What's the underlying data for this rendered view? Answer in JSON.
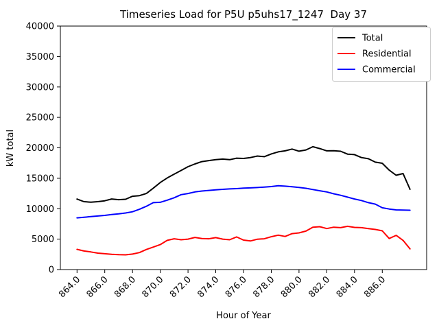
{
  "title": "Timeseries Load for P5U p5uhs17_1247  Day 37",
  "chart_data": {
    "type": "line",
    "title": "Timeseries Load for P5U p5uhs17_1247  Day 37",
    "xlabel": "Hour of Year",
    "ylabel": "kW total",
    "xlim": [
      862.8,
      889.2
    ],
    "ylim": [
      0,
      40000
    ],
    "grid": false,
    "legend_position": "upper right",
    "xticks": [
      864,
      866,
      868,
      870,
      872,
      874,
      876,
      878,
      880,
      882,
      884,
      886
    ],
    "xtick_labels": [
      "864.0",
      "866.0",
      "868.0",
      "870.0",
      "872.0",
      "874.0",
      "876.0",
      "878.0",
      "880.0",
      "882.0",
      "884.0",
      "886.0"
    ],
    "yticks": [
      0,
      5000,
      10000,
      15000,
      20000,
      25000,
      30000,
      35000,
      40000
    ],
    "ytick_labels": [
      "0",
      "5000",
      "10000",
      "15000",
      "20000",
      "25000",
      "30000",
      "35000",
      "40000"
    ],
    "x": [
      864.0,
      864.5,
      865.0,
      865.5,
      866.0,
      866.5,
      867.0,
      867.5,
      868.0,
      868.5,
      869.0,
      869.5,
      870.0,
      870.5,
      871.0,
      871.5,
      872.0,
      872.5,
      873.0,
      873.5,
      874.0,
      874.5,
      875.0,
      875.5,
      876.0,
      876.5,
      877.0,
      877.5,
      878.0,
      878.5,
      879.0,
      879.5,
      880.0,
      880.5,
      881.0,
      881.5,
      882.0,
      882.5,
      883.0,
      883.5,
      884.0,
      884.5,
      885.0,
      885.5,
      886.0,
      886.5,
      887.0,
      887.5,
      888.0
    ],
    "series": [
      {
        "name": "Total",
        "color": "#000000",
        "values": [
          11580,
          11150,
          11080,
          11150,
          11300,
          11600,
          11480,
          11550,
          12050,
          12150,
          12500,
          13370,
          14300,
          15050,
          15670,
          16280,
          16900,
          17350,
          17730,
          17900,
          18050,
          18150,
          18050,
          18300,
          18250,
          18400,
          18650,
          18550,
          19000,
          19330,
          19500,
          19800,
          19450,
          19650,
          20180,
          19880,
          19500,
          19520,
          19440,
          18960,
          18880,
          18400,
          18210,
          17650,
          17460,
          16340,
          15490,
          15780,
          13200
        ]
      },
      {
        "name": "Residential",
        "color": "#ff0000",
        "values": [
          3320,
          3050,
          2900,
          2700,
          2600,
          2500,
          2450,
          2420,
          2550,
          2800,
          3300,
          3700,
          4100,
          4800,
          5060,
          4900,
          5000,
          5280,
          5100,
          5060,
          5250,
          5000,
          4900,
          5360,
          4850,
          4700,
          4990,
          5060,
          5400,
          5660,
          5440,
          5900,
          6030,
          6320,
          6960,
          7040,
          6740,
          6960,
          6880,
          7115,
          6925,
          6880,
          6735,
          6590,
          6370,
          5100,
          5620,
          4800,
          3400
        ]
      },
      {
        "name": "Commercial",
        "color": "#0000ff",
        "values": [
          8500,
          8600,
          8700,
          8800,
          8900,
          9050,
          9150,
          9300,
          9500,
          9900,
          10400,
          11000,
          11050,
          11400,
          11800,
          12300,
          12500,
          12750,
          12900,
          13000,
          13100,
          13180,
          13250,
          13300,
          13370,
          13420,
          13480,
          13550,
          13630,
          13770,
          13700,
          13600,
          13500,
          13350,
          13150,
          12950,
          12750,
          12450,
          12200,
          11900,
          11600,
          11350,
          11000,
          10750,
          10150,
          9950,
          9800,
          9780,
          9750
        ]
      }
    ]
  }
}
